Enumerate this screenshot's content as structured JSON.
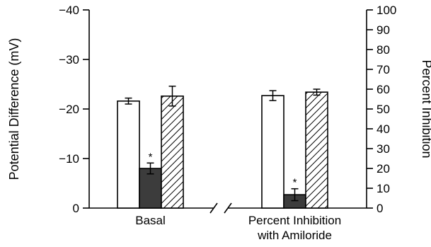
{
  "chart_data": {
    "type": "bar",
    "ylabel": "Potential Difference (mV)",
    "y2label": "Percent Inhibition",
    "left_axis": {
      "min": 0,
      "max": -40,
      "ticks": [
        0,
        -10,
        -20,
        -30,
        -40
      ],
      "tick_labels": [
        "0",
        "−10",
        "−20",
        "−30",
        "−40"
      ]
    },
    "right_axis": {
      "min": 0,
      "max": 100,
      "ticks": [
        0,
        10,
        20,
        30,
        40,
        50,
        60,
        70,
        80,
        90,
        100
      ],
      "tick_labels": [
        "0",
        "10",
        "20",
        "30",
        "40",
        "50",
        "60",
        "70",
        "80",
        "90",
        "100"
      ]
    },
    "categories": [
      {
        "lines": [
          "Basal"
        ]
      },
      {
        "lines": [
          "Percent Inhibition",
          "with Amiloride"
        ]
      }
    ],
    "series": [
      {
        "style": "white",
        "values": [
          -21.6,
          -22.7
        ],
        "errors": [
          0.6,
          1.0
        ]
      },
      {
        "style": "dark",
        "values": [
          -8.0,
          -2.7
        ],
        "errors": [
          1.1,
          1.2
        ],
        "significance": [
          "*",
          "*"
        ]
      },
      {
        "style": "hatched",
        "values": [
          -22.6,
          -23.4
        ],
        "errors": [
          2.0,
          0.6
        ]
      }
    ],
    "axis_break": true,
    "grid": false,
    "colors": {
      "white": "#ffffff",
      "dark": "#3c3c3c",
      "hatched_fill": "#ffffff",
      "stroke": "#000000"
    }
  }
}
